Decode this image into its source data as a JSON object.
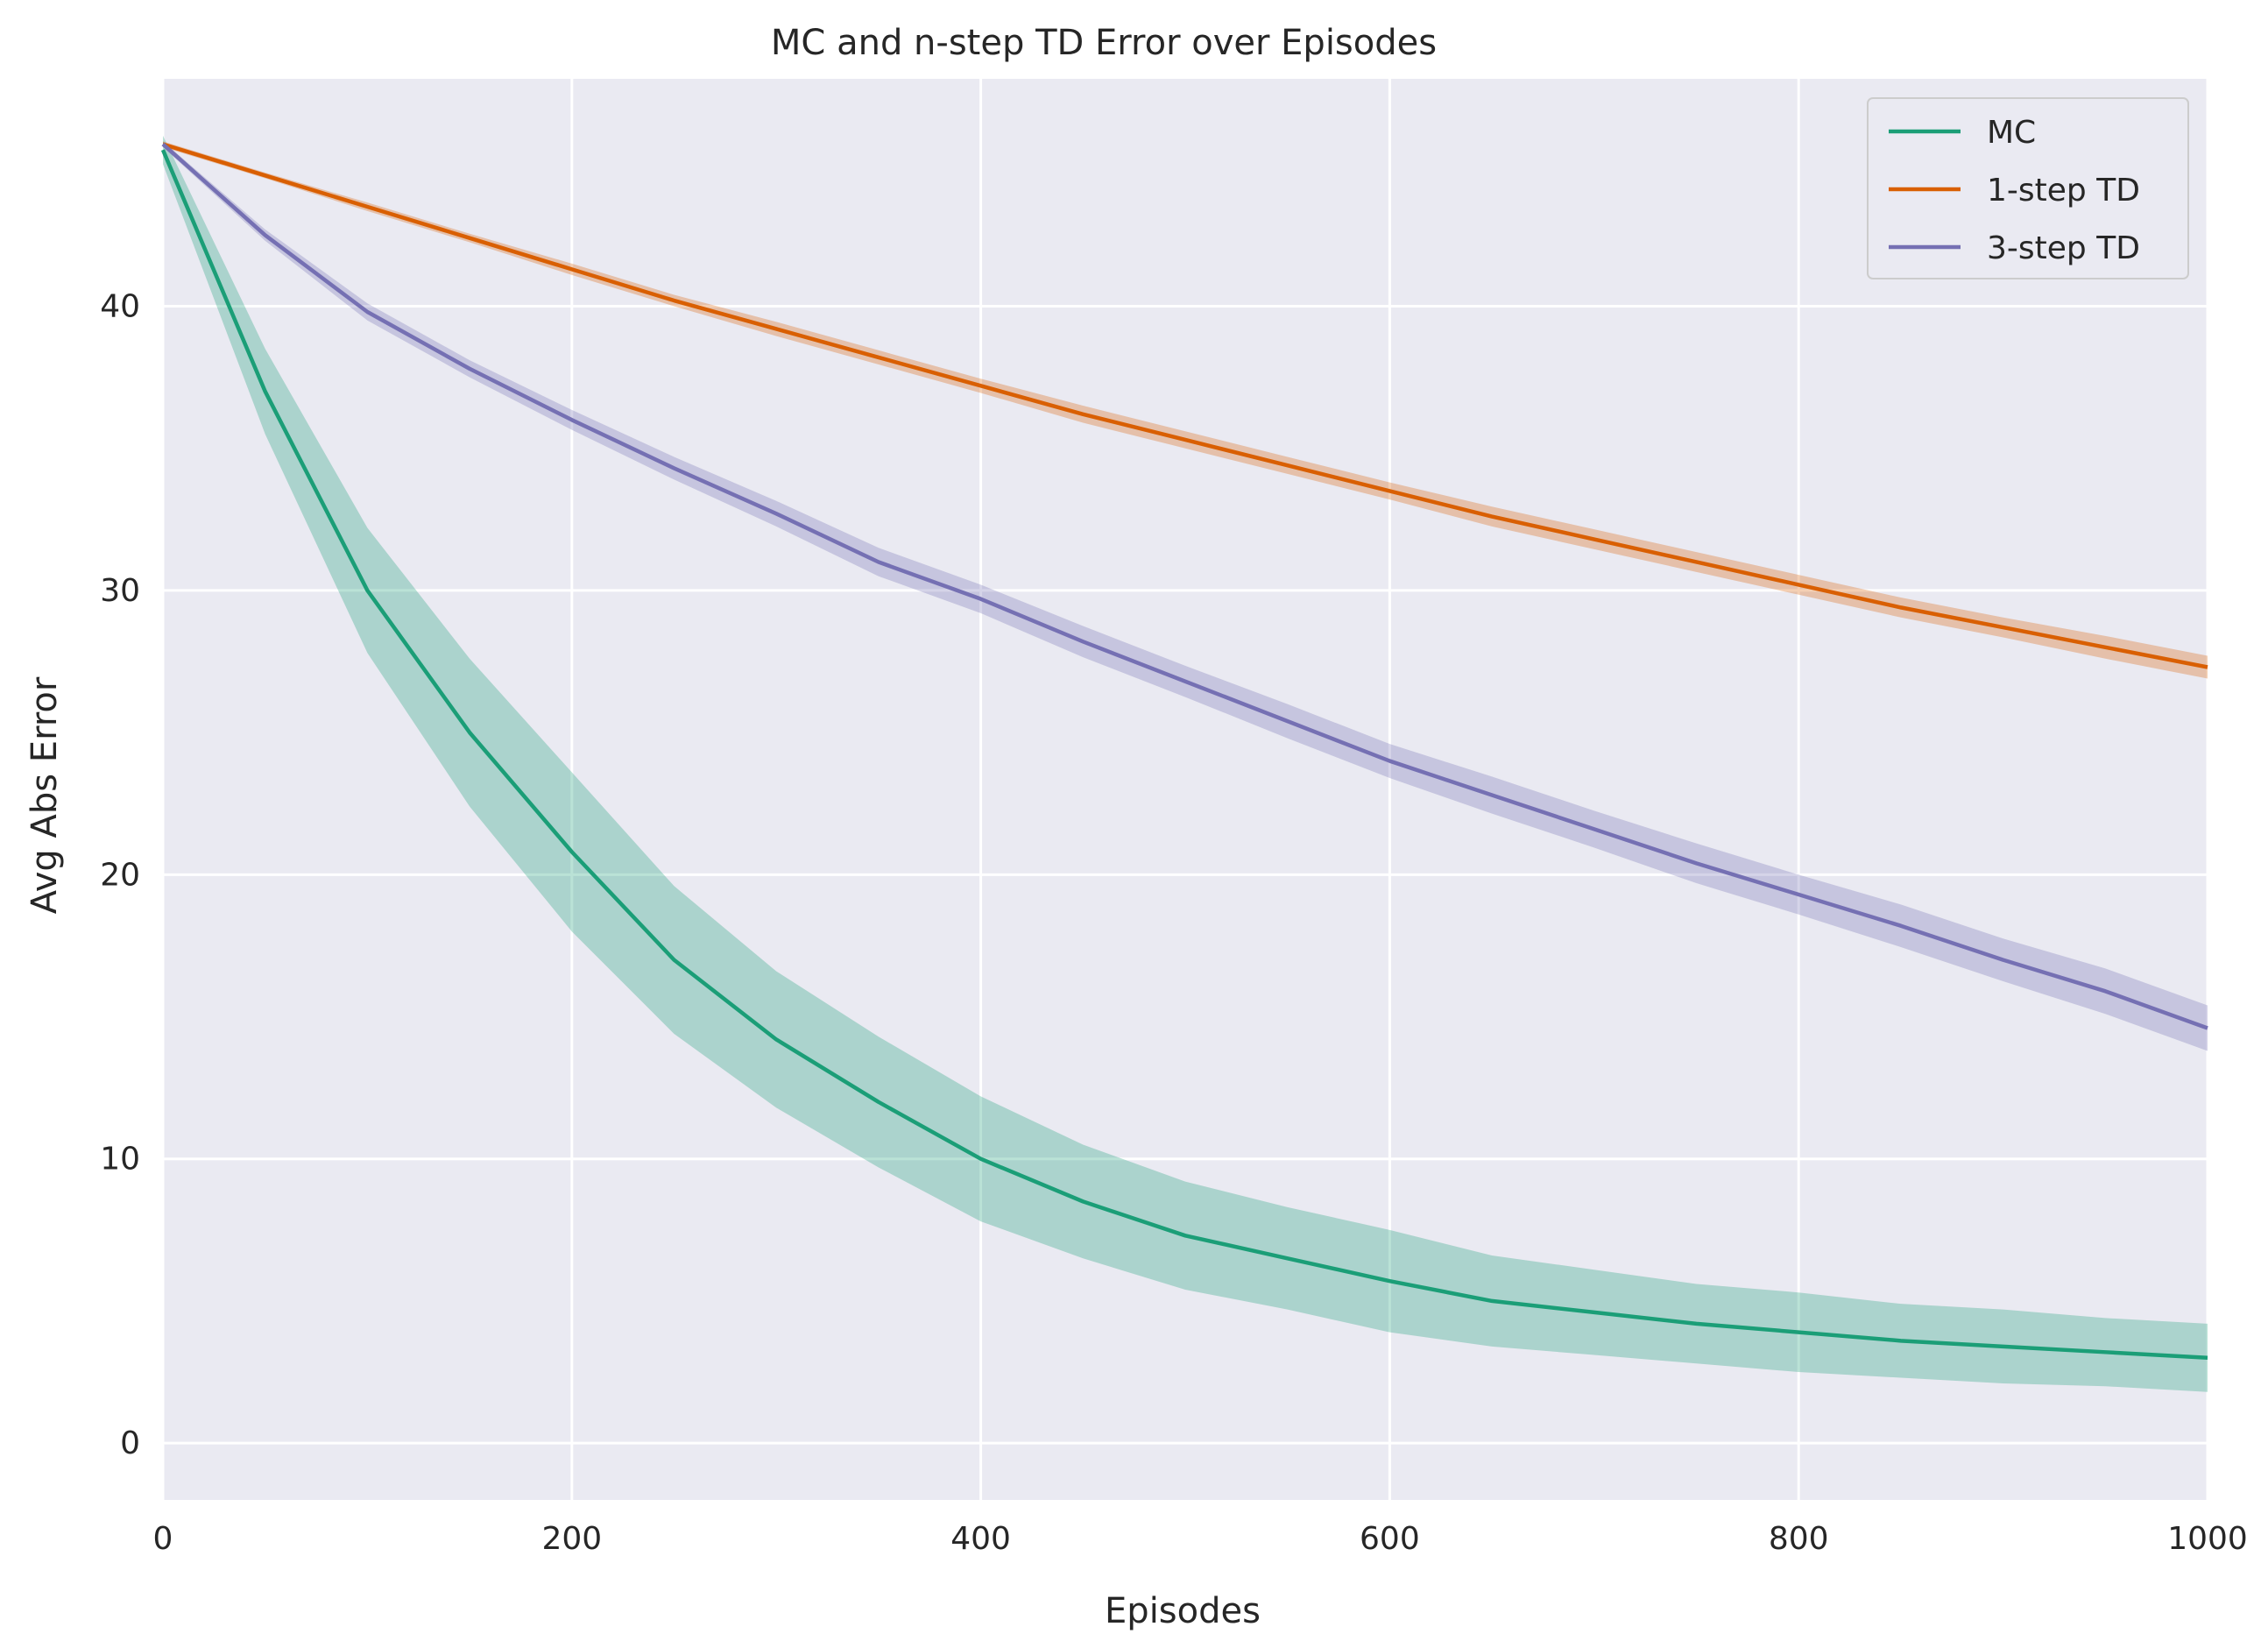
{
  "chart_data": {
    "type": "line",
    "title": "MC and n-step TD Error over Episodes",
    "xlabel": "Episodes",
    "ylabel": "Avg Abs Error",
    "xlim": [
      0,
      1000
    ],
    "ylim": [
      -2,
      48
    ],
    "xticks": [
      0,
      200,
      400,
      600,
      800,
      1000
    ],
    "yticks": [
      0,
      10,
      20,
      30,
      40
    ],
    "grid": true,
    "legend_position": "top-right",
    "colors": {
      "background": "#eaeaf2",
      "grid": "#ffffff",
      "mc": "#1b9e77",
      "td1": "#d95f02",
      "td3": "#7570b3"
    },
    "x": [
      0,
      50,
      100,
      150,
      200,
      250,
      300,
      350,
      400,
      450,
      500,
      550,
      600,
      650,
      700,
      750,
      800,
      850,
      900,
      950,
      1000
    ],
    "series": [
      {
        "name": "MC",
        "color": "#1b9e77",
        "values": [
          45.5,
          37.0,
          30.0,
          25.0,
          20.8,
          17.0,
          14.2,
          12.0,
          10.0,
          8.5,
          7.3,
          6.5,
          5.7,
          5.0,
          4.6,
          4.2,
          3.9,
          3.6,
          3.4,
          3.2,
          3.0
        ],
        "band_halfwidth": [
          0.5,
          1.5,
          2.2,
          2.6,
          2.8,
          2.6,
          2.4,
          2.3,
          2.2,
          2.0,
          1.9,
          1.8,
          1.8,
          1.6,
          1.5,
          1.4,
          1.4,
          1.3,
          1.3,
          1.2,
          1.2
        ]
      },
      {
        "name": "1-step TD",
        "color": "#d95f02",
        "values": [
          45.7,
          44.6,
          43.5,
          42.4,
          41.3,
          40.2,
          39.2,
          38.2,
          37.2,
          36.2,
          35.3,
          34.4,
          33.5,
          32.6,
          31.8,
          31.0,
          30.2,
          29.4,
          28.7,
          28.0,
          27.3
        ],
        "band_halfwidth": [
          0.1,
          0.1,
          0.15,
          0.15,
          0.2,
          0.2,
          0.25,
          0.25,
          0.25,
          0.3,
          0.3,
          0.3,
          0.3,
          0.35,
          0.35,
          0.35,
          0.35,
          0.35,
          0.35,
          0.4,
          0.4
        ]
      },
      {
        "name": "3-step TD",
        "color": "#7570b3",
        "values": [
          45.7,
          42.5,
          39.8,
          37.8,
          36.0,
          34.3,
          32.7,
          31.0,
          29.7,
          28.2,
          26.8,
          25.4,
          24.0,
          22.8,
          21.6,
          20.4,
          19.3,
          18.2,
          17.0,
          15.9,
          14.6
        ],
        "band_halfwidth": [
          0.1,
          0.2,
          0.3,
          0.3,
          0.35,
          0.4,
          0.45,
          0.5,
          0.5,
          0.55,
          0.55,
          0.6,
          0.6,
          0.65,
          0.65,
          0.7,
          0.7,
          0.75,
          0.75,
          0.8,
          0.8
        ]
      }
    ]
  }
}
